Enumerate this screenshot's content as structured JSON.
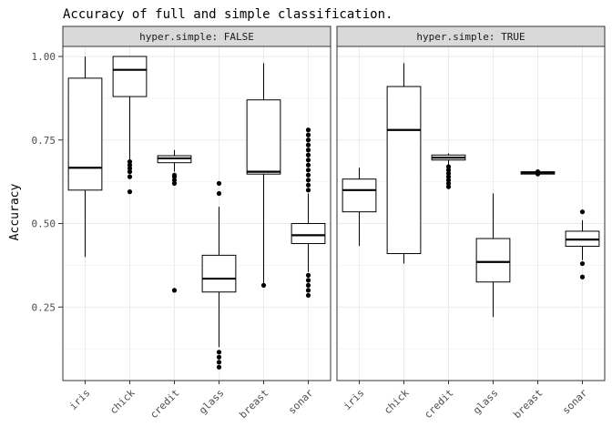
{
  "chart_data": {
    "type": "boxplot",
    "title": "Accuracy of full and simple classification.",
    "ylabel": "Accuracy",
    "xlabel": "",
    "ylim": [
      0.03,
      1.03
    ],
    "yticks": [
      0.25,
      0.5,
      0.75,
      1.0
    ],
    "ytick_labels": [
      "0.25",
      "0.50",
      "0.75",
      "1.00"
    ],
    "grid": true,
    "categories": [
      "iris",
      "chick",
      "credit",
      "glass",
      "breast",
      "sonar"
    ],
    "panels": [
      {
        "strip": "hyper.simple: FALSE",
        "boxes": [
          {
            "category": "iris",
            "whisker_low": 0.4,
            "q1": 0.6,
            "median": 0.667,
            "q3": 0.935,
            "whisker_high": 1.0,
            "outliers": []
          },
          {
            "category": "chick",
            "whisker_low": 0.69,
            "q1": 0.88,
            "median": 0.96,
            "q3": 1.0,
            "whisker_high": 1.0,
            "outliers": [
              0.595,
              0.64,
              0.655,
              0.665,
              0.675,
              0.685
            ]
          },
          {
            "category": "credit",
            "whisker_low": 0.655,
            "q1": 0.682,
            "median": 0.695,
            "q3": 0.703,
            "whisker_high": 0.72,
            "outliers": [
              0.3,
              0.62,
              0.63,
              0.64,
              0.645
            ]
          },
          {
            "category": "glass",
            "whisker_low": 0.13,
            "q1": 0.295,
            "median": 0.335,
            "q3": 0.405,
            "whisker_high": 0.55,
            "outliers": [
              0.07,
              0.085,
              0.1,
              0.115,
              0.59,
              0.62
            ]
          },
          {
            "category": "breast",
            "whisker_low": 0.315,
            "q1": 0.648,
            "median": 0.655,
            "q3": 0.87,
            "whisker_high": 0.98,
            "outliers": [
              0.315
            ]
          },
          {
            "category": "sonar",
            "whisker_low": 0.355,
            "q1": 0.44,
            "median": 0.465,
            "q3": 0.5,
            "whisker_high": 0.59,
            "outliers": [
              0.285,
              0.3,
              0.315,
              0.33,
              0.345,
              0.6,
              0.615,
              0.63,
              0.645,
              0.66,
              0.675,
              0.69,
              0.705,
              0.72,
              0.735,
              0.75,
              0.765,
              0.78
            ]
          }
        ]
      },
      {
        "strip": "hyper.simple: TRUE",
        "boxes": [
          {
            "category": "iris",
            "whisker_low": 0.433,
            "q1": 0.535,
            "median": 0.6,
            "q3": 0.633,
            "whisker_high": 0.667,
            "outliers": []
          },
          {
            "category": "chick",
            "whisker_low": 0.38,
            "q1": 0.41,
            "median": 0.78,
            "q3": 0.91,
            "whisker_high": 0.98,
            "outliers": []
          },
          {
            "category": "credit",
            "whisker_low": 0.675,
            "q1": 0.69,
            "median": 0.697,
            "q3": 0.705,
            "whisker_high": 0.71,
            "outliers": [
              0.61,
              0.62,
              0.63,
              0.64,
              0.65,
              0.66,
              0.67
            ]
          },
          {
            "category": "glass",
            "whisker_low": 0.22,
            "q1": 0.325,
            "median": 0.385,
            "q3": 0.455,
            "whisker_high": 0.59,
            "outliers": []
          },
          {
            "category": "breast",
            "whisker_low": 0.645,
            "q1": 0.648,
            "median": 0.652,
            "q3": 0.655,
            "whisker_high": 0.66,
            "outliers": [
              0.648,
              0.655
            ]
          },
          {
            "category": "sonar",
            "whisker_low": 0.39,
            "q1": 0.432,
            "median": 0.452,
            "q3": 0.477,
            "whisker_high": 0.51,
            "outliers": [
              0.34,
              0.38,
              0.535
            ]
          }
        ]
      }
    ]
  }
}
